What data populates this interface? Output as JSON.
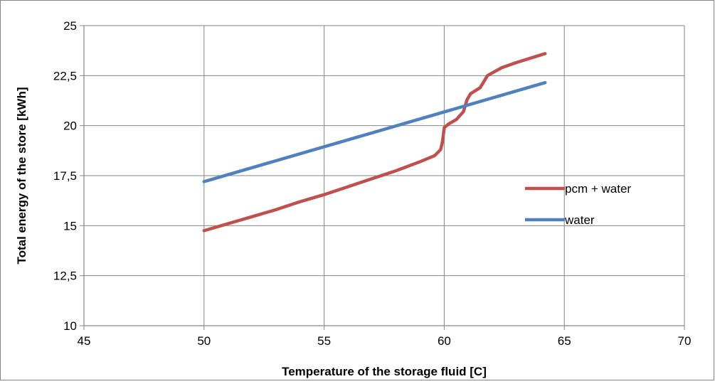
{
  "chart_data": {
    "type": "line",
    "title": "",
    "xlabel": "Temperature of the storage fluid [C]",
    "ylabel": "Total energy of the store [kWh]",
    "xlim": [
      45,
      70
    ],
    "ylim": [
      10,
      25
    ],
    "x_ticks": [
      45,
      50,
      55,
      60,
      65,
      70
    ],
    "x_tick_labels": [
      "45",
      "50",
      "55",
      "60",
      "65",
      "70"
    ],
    "y_ticks": [
      10,
      12.5,
      15,
      17.5,
      20,
      22.5,
      25
    ],
    "y_tick_labels": [
      "10",
      "12,5",
      "15",
      "17,5",
      "20",
      "22,5",
      "25"
    ],
    "grid": true,
    "legend_position": "right",
    "series": [
      {
        "name": "pcm + water",
        "color": "#C0504D",
        "points": [
          [
            50,
            14.75
          ],
          [
            51,
            15.1
          ],
          [
            52,
            15.45
          ],
          [
            53,
            15.8
          ],
          [
            54,
            16.2
          ],
          [
            55,
            16.55
          ],
          [
            56,
            16.95
          ],
          [
            57,
            17.35
          ],
          [
            58,
            17.75
          ],
          [
            59,
            18.2
          ],
          [
            59.6,
            18.5
          ],
          [
            59.85,
            18.8
          ],
          [
            59.93,
            19.2
          ],
          [
            59.97,
            19.6
          ],
          [
            60,
            19.9
          ],
          [
            60.2,
            20.1
          ],
          [
            60.5,
            20.3
          ],
          [
            60.8,
            20.7
          ],
          [
            60.95,
            21.3
          ],
          [
            61.1,
            21.6
          ],
          [
            61.5,
            21.9
          ],
          [
            61.8,
            22.5
          ],
          [
            62.1,
            22.7
          ],
          [
            62.4,
            22.9
          ],
          [
            63,
            23.15
          ],
          [
            64.2,
            23.6
          ]
        ]
      },
      {
        "name": "water",
        "color": "#4F81BD",
        "points": [
          [
            50,
            17.2
          ],
          [
            64.2,
            22.15
          ]
        ]
      }
    ]
  }
}
